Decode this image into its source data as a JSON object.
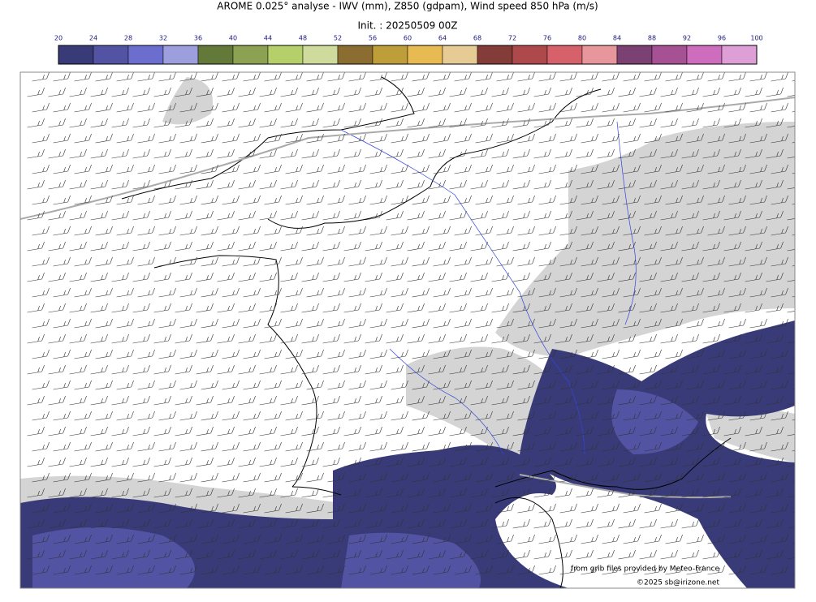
{
  "title": "AROME 0.025° analyse - IWV (mm), Z850 (gdpam), Wind speed 850 hPa (m/s)",
  "init": "Init. : 20250509 00Z",
  "colorbar": {
    "ticks": [
      20,
      24,
      28,
      32,
      36,
      40,
      44,
      48,
      52,
      56,
      60,
      64,
      68,
      72,
      76,
      80,
      84,
      88,
      92,
      96,
      100
    ],
    "colors": [
      "#393b79",
      "#5254a3",
      "#6b6ecf",
      "#9c9ede",
      "#637939",
      "#8ca252",
      "#b5cf6b",
      "#cedb9c",
      "#8c6d31",
      "#bd9e39",
      "#e7ba52",
      "#e7cb94",
      "#843c39",
      "#ad494a",
      "#d6616b",
      "#e7969c",
      "#7b4173",
      "#a55194",
      "#ce6dbd",
      "#de9ed6"
    ]
  },
  "credits": {
    "source": "from grib files provided by Meteo-France",
    "copyright": "©2025 sb@irizone.net"
  }
}
